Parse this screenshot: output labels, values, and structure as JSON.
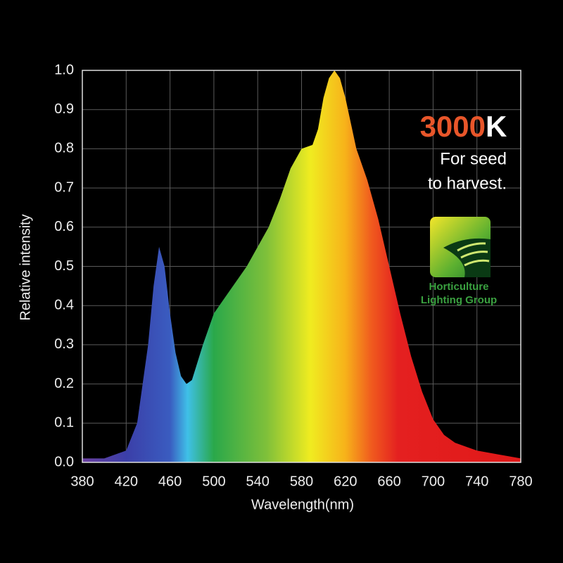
{
  "chart_data": {
    "type": "area",
    "x_label": "Wavelength(nm)",
    "y_label": "Relative intensity",
    "annotations": {
      "cct_number": "3000",
      "cct_unit": "K",
      "line1": "For seed",
      "line2": "to harvest.",
      "logo_line1": "Horticulture",
      "logo_line2": "Lighting Group"
    },
    "x": [
      380,
      400,
      420,
      430,
      440,
      445,
      450,
      455,
      460,
      465,
      470,
      475,
      480,
      490,
      500,
      510,
      520,
      530,
      540,
      550,
      560,
      570,
      580,
      590,
      595,
      600,
      605,
      610,
      615,
      620,
      630,
      640,
      650,
      660,
      670,
      680,
      690,
      700,
      710,
      720,
      740,
      760,
      780
    ],
    "values": [
      0.01,
      0.01,
      0.03,
      0.1,
      0.3,
      0.45,
      0.55,
      0.5,
      0.38,
      0.28,
      0.22,
      0.2,
      0.21,
      0.3,
      0.38,
      0.42,
      0.46,
      0.5,
      0.55,
      0.6,
      0.67,
      0.75,
      0.8,
      0.81,
      0.85,
      0.93,
      0.98,
      1.0,
      0.98,
      0.93,
      0.8,
      0.72,
      0.62,
      0.5,
      0.38,
      0.27,
      0.18,
      0.11,
      0.07,
      0.05,
      0.03,
      0.02,
      0.01
    ],
    "xlim": [
      380,
      780
    ],
    "ylim": [
      0,
      1
    ],
    "xticks": [
      380,
      420,
      460,
      500,
      540,
      580,
      620,
      660,
      700,
      740,
      780
    ],
    "yticks": [
      {
        "value": 0,
        "label": "0.0"
      },
      0.1,
      0.2,
      0.3,
      0.4,
      0.5,
      0.6,
      0.7,
      0.8,
      0.9,
      {
        "value": 1,
        "label": "1.0"
      }
    ],
    "grid": true
  }
}
